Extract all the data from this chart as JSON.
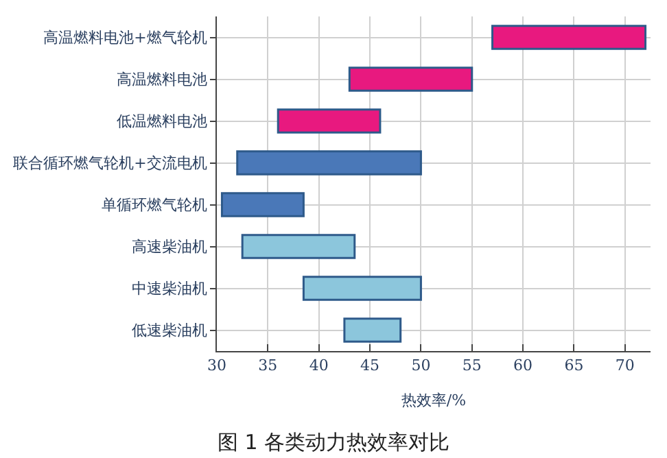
{
  "chart_data": {
    "type": "bar",
    "orientation": "horizontal",
    "title": "图 1 各类动力热效率对比",
    "xlabel": "热效率/%",
    "categories": [
      "高温燃料电池+燃气轮机",
      "高温燃料电池",
      "低温燃料电池",
      "联合循环燃气轮机+交流电机",
      "单循环燃气轮机",
      "高速柴油机",
      "中速柴油机",
      "低速柴油机"
    ],
    "base": [
      57,
      43,
      36,
      32,
      30.5,
      32.5,
      38.5,
      42.5
    ],
    "values": [
      15,
      12,
      10,
      18,
      8,
      11,
      11.5,
      5.5
    ],
    "colors": [
      "#e8197f",
      "#e8197f",
      "#e8197f",
      "#4a78b8",
      "#4a78b8",
      "#8cc6dc",
      "#8cc6dc",
      "#8cc6dc"
    ],
    "xlim": [
      30,
      72.5
    ],
    "xticks": [
      30,
      35,
      40,
      45,
      50,
      55,
      60,
      65,
      70
    ],
    "grid": true
  }
}
